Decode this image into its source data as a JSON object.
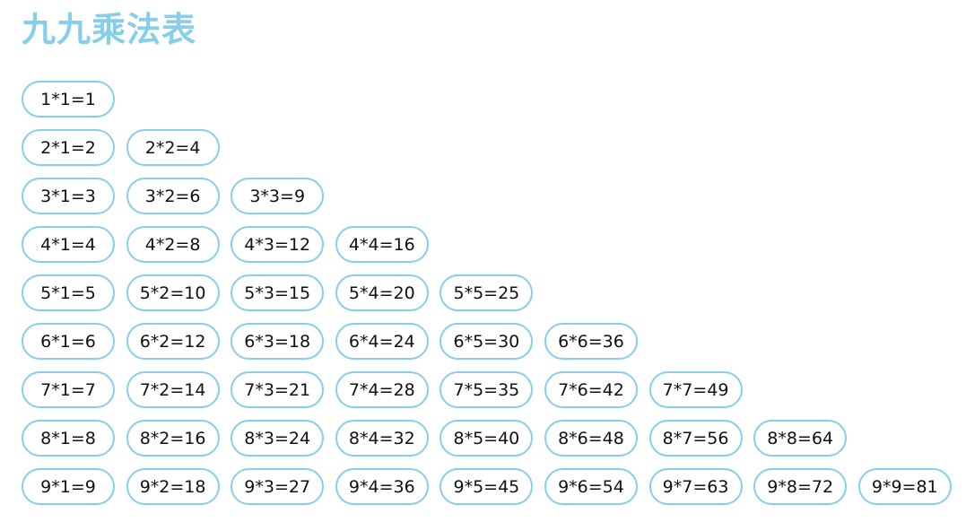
{
  "page": {
    "title": "九九乘法表"
  },
  "table": {
    "rows": [
      [
        "1*1=1"
      ],
      [
        "2*1=2",
        "2*2=4"
      ],
      [
        "3*1=3",
        "3*2=6",
        "3*3=9"
      ],
      [
        "4*1=4",
        "4*2=8",
        "4*3=12",
        "4*4=16"
      ],
      [
        "5*1=5",
        "5*2=10",
        "5*3=15",
        "5*4=20",
        "5*5=25"
      ],
      [
        "6*1=6",
        "6*2=12",
        "6*3=18",
        "6*4=24",
        "6*5=30",
        "6*6=36"
      ],
      [
        "7*1=7",
        "7*2=14",
        "7*3=21",
        "7*4=28",
        "7*5=35",
        "7*6=42",
        "7*7=49"
      ],
      [
        "8*1=8",
        "8*2=16",
        "8*3=24",
        "8*4=32",
        "8*5=40",
        "8*6=48",
        "8*7=56",
        "8*8=64"
      ],
      [
        "9*1=9",
        "9*2=18",
        "9*3=27",
        "9*4=36",
        "9*5=45",
        "9*6=54",
        "9*7=63",
        "9*8=72",
        "9*9=81"
      ]
    ]
  },
  "colors": {
    "accent": "#87ceeb",
    "text": "#111111",
    "background": "#ffffff"
  }
}
